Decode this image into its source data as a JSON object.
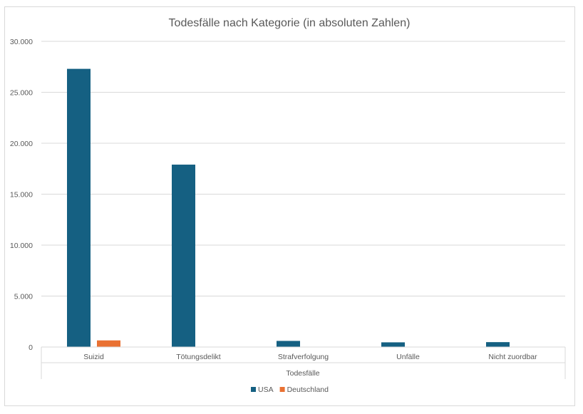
{
  "chart_data": {
    "type": "bar",
    "title": "Todesfälle nach Kategorie (in absoluten Zahlen)",
    "xlabel": "Todesfälle",
    "ylabel": "",
    "categories": [
      "Suizid",
      "Tötungsdelikt",
      "Strafverfolgung",
      "Unfälle",
      "Nicht zuordbar"
    ],
    "series": [
      {
        "name": "USA",
        "color": "#156082",
        "values": [
          27300,
          17900,
          600,
          460,
          480
        ]
      },
      {
        "name": "Deutschland",
        "color": "#E97132",
        "values": [
          650,
          0,
          0,
          0,
          0
        ]
      }
    ],
    "ylim": [
      0,
      30000
    ],
    "yticks": [
      0,
      5000,
      10000,
      15000,
      20000,
      25000,
      30000
    ],
    "ytick_labels": [
      "0",
      "5.000",
      "10.000",
      "15.000",
      "20.000",
      "25.000",
      "30.000"
    ],
    "grid": true,
    "legend_position": "bottom"
  }
}
